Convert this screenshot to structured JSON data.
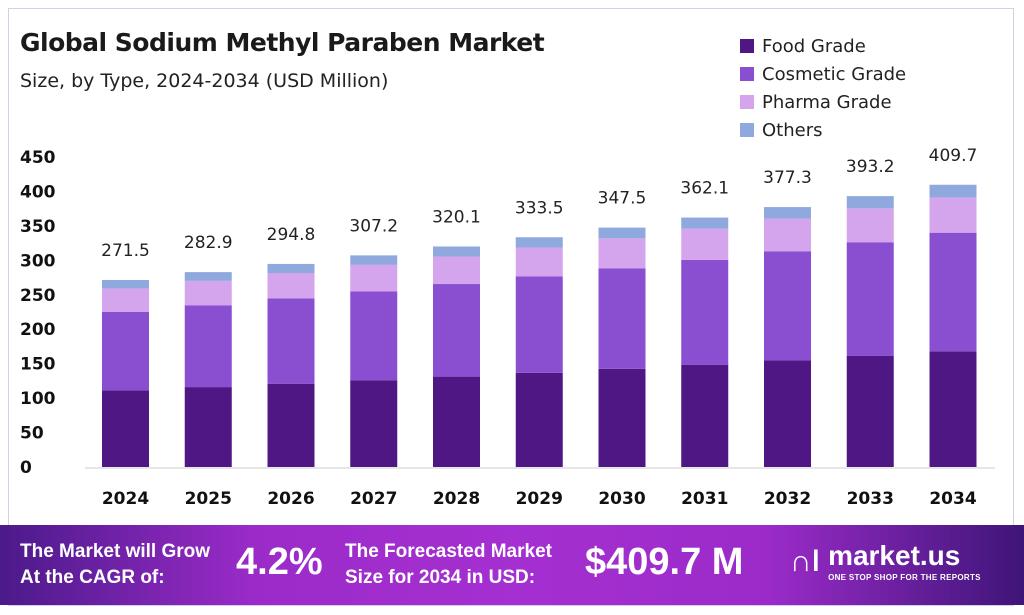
{
  "chart_data": {
    "type": "bar",
    "stacked": true,
    "title": "Global Sodium Methyl Paraben Market",
    "subtitle": "Size, by Type, 2024-2034 (USD Million)",
    "categories": [
      "2024",
      "2025",
      "2026",
      "2027",
      "2028",
      "2029",
      "2030",
      "2031",
      "2032",
      "2033",
      "2034"
    ],
    "series": [
      {
        "name": "Food Grade",
        "color": "#4f1784",
        "values": [
          111.3,
          116.0,
          120.9,
          126.0,
          131.2,
          136.7,
          142.5,
          148.5,
          154.7,
          161.2,
          168.0
        ]
      },
      {
        "name": "Cosmetic Grade",
        "color": "#8a4fd0",
        "values": [
          114.0,
          118.8,
          123.8,
          129.0,
          134.4,
          140.1,
          146.0,
          152.1,
          158.5,
          165.1,
          172.1
        ]
      },
      {
        "name": "Pharma Grade",
        "color": "#d4a5ec",
        "values": [
          33.9,
          35.4,
          36.9,
          38.4,
          40.0,
          41.7,
          43.4,
          45.3,
          47.2,
          49.2,
          51.2
        ]
      },
      {
        "name": "Others",
        "color": "#8fa8de",
        "values": [
          12.3,
          12.7,
          13.2,
          13.8,
          14.5,
          15.0,
          15.6,
          16.2,
          16.9,
          17.7,
          18.4
        ]
      }
    ],
    "totals": [
      "271.5",
      "282.9",
      "294.8",
      "307.2",
      "320.1",
      "333.5",
      "347.5",
      "362.1",
      "377.3",
      "393.2",
      "409.7"
    ],
    "yticks": [
      "0",
      "50",
      "100",
      "150",
      "200",
      "250",
      "300",
      "350",
      "400",
      "450"
    ],
    "ylim": [
      0,
      450
    ],
    "grid": false,
    "legend_position": "top-right"
  },
  "footer": {
    "cagr_label_1": "The Market will Grow",
    "cagr_label_2": "At the CAGR of:",
    "cagr_value": "4.2%",
    "forecast_label_1": "The Forecasted Market",
    "forecast_label_2": "Size for 2034 in USD:",
    "forecast_value": "$409.7 M",
    "brand": "market.us",
    "brand_tagline": "ONE STOP SHOP FOR THE REPORTS"
  }
}
